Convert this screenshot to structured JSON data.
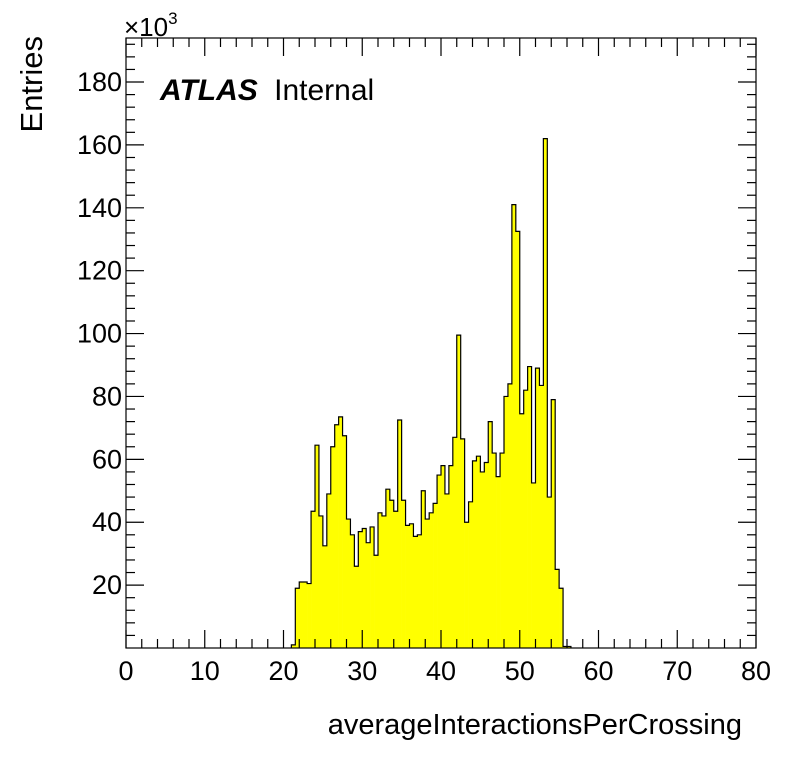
{
  "chart_data": {
    "type": "bar",
    "histogram": true,
    "bin_width": 0.5,
    "x_start": 21.0,
    "xlabel": "averageInteractionsPerCrossing",
    "ylabel": "Entries",
    "y_multiplier": "×10",
    "y_multiplier_exp": "3",
    "xlim": [
      0,
      80
    ],
    "ylim": [
      0,
      194
    ],
    "x_ticks": [
      "0",
      "10",
      "20",
      "30",
      "40",
      "50",
      "60",
      "70",
      "80"
    ],
    "y_ticks": [
      "20",
      "40",
      "60",
      "80",
      "100",
      "120",
      "140",
      "160",
      "180"
    ],
    "grid": false,
    "legend": "none",
    "fill_color": "#ffff00",
    "line_color": "#000000",
    "annotation": {
      "bold": "ATLAS",
      "normal": "Internal"
    },
    "values": [
      1,
      19,
      21,
      21,
      20.5,
      43.5,
      64.5,
      42,
      32.5,
      49,
      64,
      71,
      73.5,
      67.5,
      41,
      36,
      26,
      37,
      38,
      33.5,
      38.5,
      29.5,
      43,
      42,
      50.5,
      47,
      43.5,
      72.5,
      47,
      39,
      39.5,
      35.5,
      36,
      50,
      41,
      43,
      46,
      55,
      58,
      49,
      58,
      67,
      99.5,
      66.5,
      40,
      46.5,
      59.5,
      61,
      56,
      59,
      72,
      62,
      54.5,
      62,
      80,
      84,
      141,
      132.5,
      74.5,
      82,
      89.5,
      52.5,
      89,
      83.5,
      162,
      48,
      79,
      25,
      19,
      0.5,
      0.5
    ]
  }
}
